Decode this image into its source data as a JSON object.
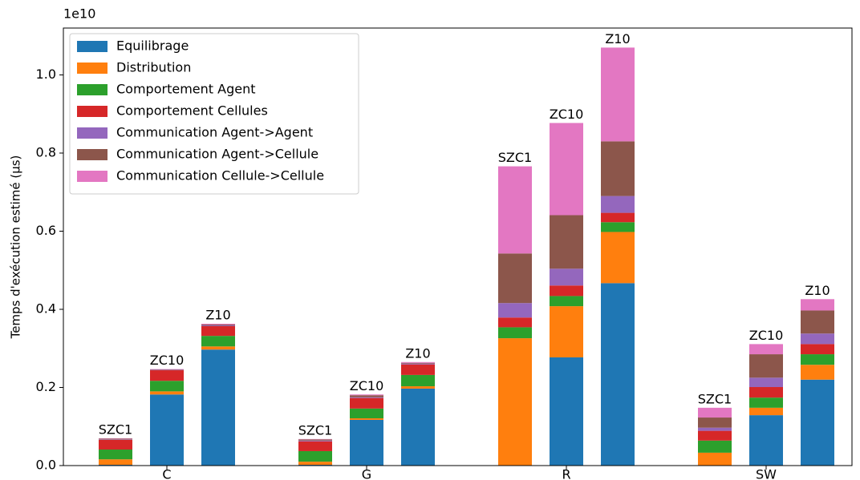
{
  "chart_data": {
    "type": "grouped_stacked_bar",
    "y_label": "Temps d'exécution estimé (µs)",
    "y_offset_label": "1e10",
    "categories": [
      "C",
      "G",
      "R",
      "SW"
    ],
    "groups": [
      "SZC1",
      "ZC10",
      "Z10"
    ],
    "ylim": [
      0,
      1.12
    ],
    "yticks": [
      {
        "value": 0,
        "label": "0.0"
      },
      0.2,
      0.4,
      0.6,
      0.8,
      {
        "value": 1,
        "label": "1.0"
      }
    ],
    "legend": "upper left",
    "series": [
      {
        "name": "Equilibrage",
        "color": "#1f77b4",
        "values": [
          [
            0.002,
            0.182,
            0.297
          ],
          [
            0.002,
            0.117,
            0.197
          ],
          [
            0,
            0.277,
            0.467
          ],
          [
            0,
            0.129,
            0.22
          ]
        ]
      },
      {
        "name": "Distribution",
        "color": "#ff7f0e",
        "values": [
          [
            0.014,
            0.008,
            0.008
          ],
          [
            0.008,
            0.004,
            0.006
          ],
          [
            0.326,
            0.131,
            0.131
          ],
          [
            0.033,
            0.019,
            0.038
          ]
        ]
      },
      {
        "name": "Comportement Agent",
        "color": "#2ca02c",
        "values": [
          [
            0.025,
            0.027,
            0.027
          ],
          [
            0.027,
            0.025,
            0.029
          ],
          [
            0.028,
            0.026,
            0.025
          ],
          [
            0.031,
            0.026,
            0.027
          ]
        ]
      },
      {
        "name": "Comportement Cellules",
        "color": "#d62728",
        "values": [
          [
            0.025,
            0.027,
            0.025
          ],
          [
            0.025,
            0.027,
            0.027
          ],
          [
            0.025,
            0.027,
            0.024
          ],
          [
            0.025,
            0.027,
            0.026
          ]
        ]
      },
      {
        "name": "Communication Agent->Agent",
        "color": "#9467bd",
        "values": [
          [
            0.001,
            0.001,
            0.002
          ],
          [
            0.002,
            0.002,
            0.002
          ],
          [
            0.037,
            0.043,
            0.043
          ],
          [
            0.008,
            0.024,
            0.027
          ]
        ]
      },
      {
        "name": "Communication Agent->Cellule",
        "color": "#8c564b",
        "values": [
          [
            0.002,
            0.001,
            0.002
          ],
          [
            0.003,
            0.005,
            0.002
          ],
          [
            0.127,
            0.137,
            0.14
          ],
          [
            0.026,
            0.06,
            0.059
          ]
        ]
      },
      {
        "name": "Communication Cellule->Cellule",
        "color": "#e377c2",
        "values": [
          [
            0.001,
            0.001,
            0.002
          ],
          [
            0.001,
            0.002,
            0.002
          ],
          [
            0.223,
            0.236,
            0.24
          ],
          [
            0.025,
            0.026,
            0.029
          ]
        ]
      }
    ]
  }
}
